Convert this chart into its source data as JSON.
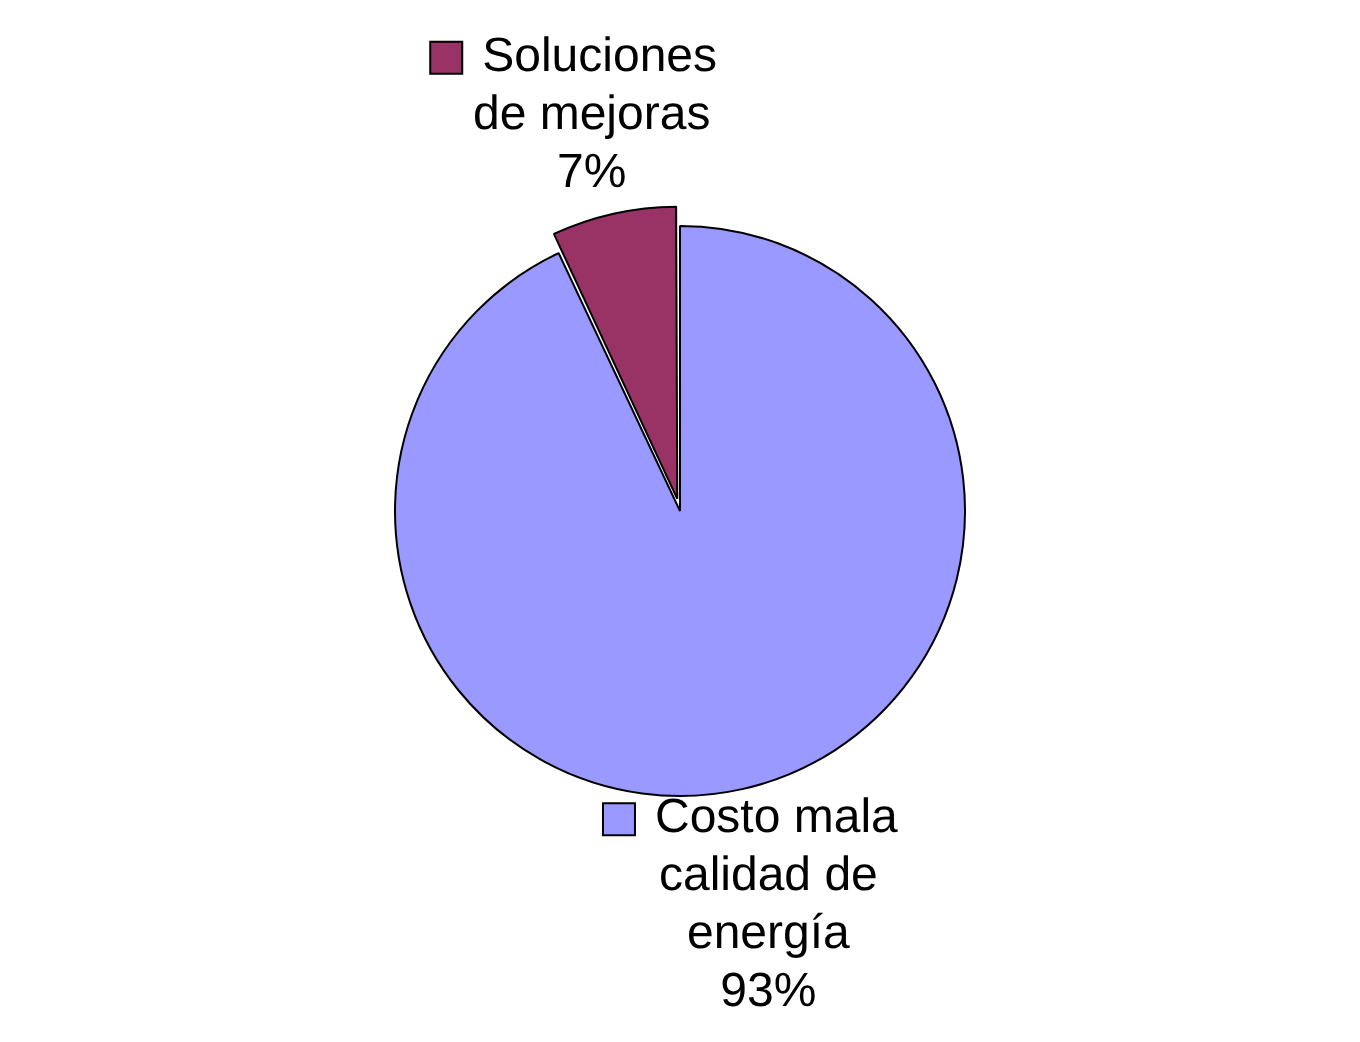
{
  "chart_data": {
    "type": "pie",
    "categories": [
      "Soluciones de mejoras",
      "Costo mala calidad de energía"
    ],
    "values": [
      7,
      93
    ],
    "colors": [
      "#993366",
      "#9999ff"
    ],
    "value_labels": [
      "7%",
      "93%"
    ],
    "legend": "top left"
  }
}
